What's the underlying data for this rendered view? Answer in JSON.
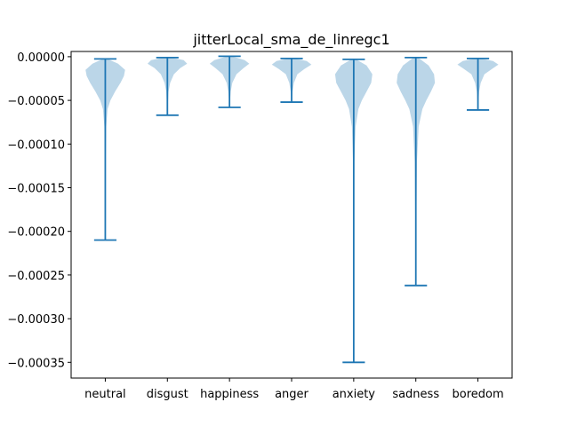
{
  "chart_data": {
    "type": "violin",
    "title": "jitterLocal_sma_de_linregc1",
    "xlabel": "",
    "ylabel": "",
    "categories": [
      "neutral",
      "disgust",
      "happiness",
      "anger",
      "anxiety",
      "sadness",
      "boredom"
    ],
    "ylim": [
      -0.000368,
      6e-06
    ],
    "yticks": [
      0.0,
      -5e-05,
      -0.0001,
      -0.00015,
      -0.0002,
      -0.00025,
      -0.0003,
      -0.00035
    ],
    "ytick_labels": [
      "0.00000",
      "−0.00005",
      "−0.00010",
      "−0.00015",
      "−0.00020",
      "−0.00025",
      "−0.00030",
      "−0.00035"
    ],
    "series": [
      {
        "min": -0.00021,
        "max": -2.5e-06,
        "profile": [
          [
            -2.5e-06,
            0.1
          ],
          [
            -8e-06,
            0.55
          ],
          [
            -1.5e-05,
            0.85
          ],
          [
            -2.2e-05,
            0.8
          ],
          [
            -3e-05,
            0.65
          ],
          [
            -4e-05,
            0.42
          ],
          [
            -5e-05,
            0.22
          ],
          [
            -6e-05,
            0.1
          ],
          [
            -8e-05,
            0.04
          ],
          [
            -0.00012,
            0.02
          ],
          [
            -0.00018,
            0.01
          ],
          [
            -0.00021,
            0.0
          ]
        ]
      },
      {
        "min": -6.7e-05,
        "max": -1e-06,
        "profile": [
          [
            -1e-06,
            0.15
          ],
          [
            -4e-06,
            0.7
          ],
          [
            -8e-06,
            0.85
          ],
          [
            -1.3e-05,
            0.55
          ],
          [
            -2e-05,
            0.28
          ],
          [
            -3e-05,
            0.12
          ],
          [
            -4e-05,
            0.05
          ],
          [
            -5.5e-05,
            0.02
          ],
          [
            -6.7e-05,
            0.0
          ]
        ]
      },
      {
        "min": -5.8e-05,
        "max": 5e-07,
        "profile": [
          [
            5e-07,
            0.1
          ],
          [
            -4e-06,
            0.65
          ],
          [
            -8e-06,
            0.85
          ],
          [
            -1.3e-05,
            0.6
          ],
          [
            -2e-05,
            0.3
          ],
          [
            -3e-05,
            0.12
          ],
          [
            -4e-05,
            0.05
          ],
          [
            -5e-05,
            0.02
          ],
          [
            -5.8e-05,
            0.0
          ]
        ]
      },
      {
        "min": -5.2e-05,
        "max": -2e-06,
        "profile": [
          [
            -2e-06,
            0.1
          ],
          [
            -5e-06,
            0.65
          ],
          [
            -9e-06,
            0.85
          ],
          [
            -1.4e-05,
            0.55
          ],
          [
            -2e-05,
            0.25
          ],
          [
            -3e-05,
            0.1
          ],
          [
            -4e-05,
            0.04
          ],
          [
            -5.2e-05,
            0.0
          ]
        ]
      },
      {
        "min": -0.00035,
        "max": -3e-06,
        "profile": [
          [
            -3e-06,
            0.1
          ],
          [
            -1e-05,
            0.55
          ],
          [
            -2e-05,
            0.8
          ],
          [
            -3e-05,
            0.75
          ],
          [
            -4e-05,
            0.55
          ],
          [
            -5e-05,
            0.35
          ],
          [
            -6e-05,
            0.2
          ],
          [
            -8e-05,
            0.08
          ],
          [
            -0.00012,
            0.03
          ],
          [
            -0.0002,
            0.015
          ],
          [
            -0.00035,
            0.0
          ]
        ]
      },
      {
        "min": -0.000262,
        "max": -1e-06,
        "profile": [
          [
            -1e-06,
            0.1
          ],
          [
            -1e-05,
            0.55
          ],
          [
            -2e-05,
            0.78
          ],
          [
            -3e-05,
            0.82
          ],
          [
            -4e-05,
            0.65
          ],
          [
            -5e-05,
            0.45
          ],
          [
            -6e-05,
            0.28
          ],
          [
            -8e-05,
            0.12
          ],
          [
            -0.00012,
            0.05
          ],
          [
            -0.0002,
            0.02
          ],
          [
            -0.000262,
            0.0
          ]
        ]
      },
      {
        "min": -6.1e-05,
        "max": -2e-06,
        "profile": [
          [
            -2e-06,
            0.1
          ],
          [
            -5e-06,
            0.65
          ],
          [
            -9e-06,
            0.88
          ],
          [
            -1.4e-05,
            0.6
          ],
          [
            -2e-05,
            0.28
          ],
          [
            -3e-05,
            0.12
          ],
          [
            -4e-05,
            0.05
          ],
          [
            -6.1e-05,
            0.0
          ]
        ]
      }
    ],
    "colors": {
      "body": "#1f77b4",
      "body_opacity": 0.3,
      "lines": "#1f77b4"
    },
    "grid": false,
    "legend": "none"
  }
}
